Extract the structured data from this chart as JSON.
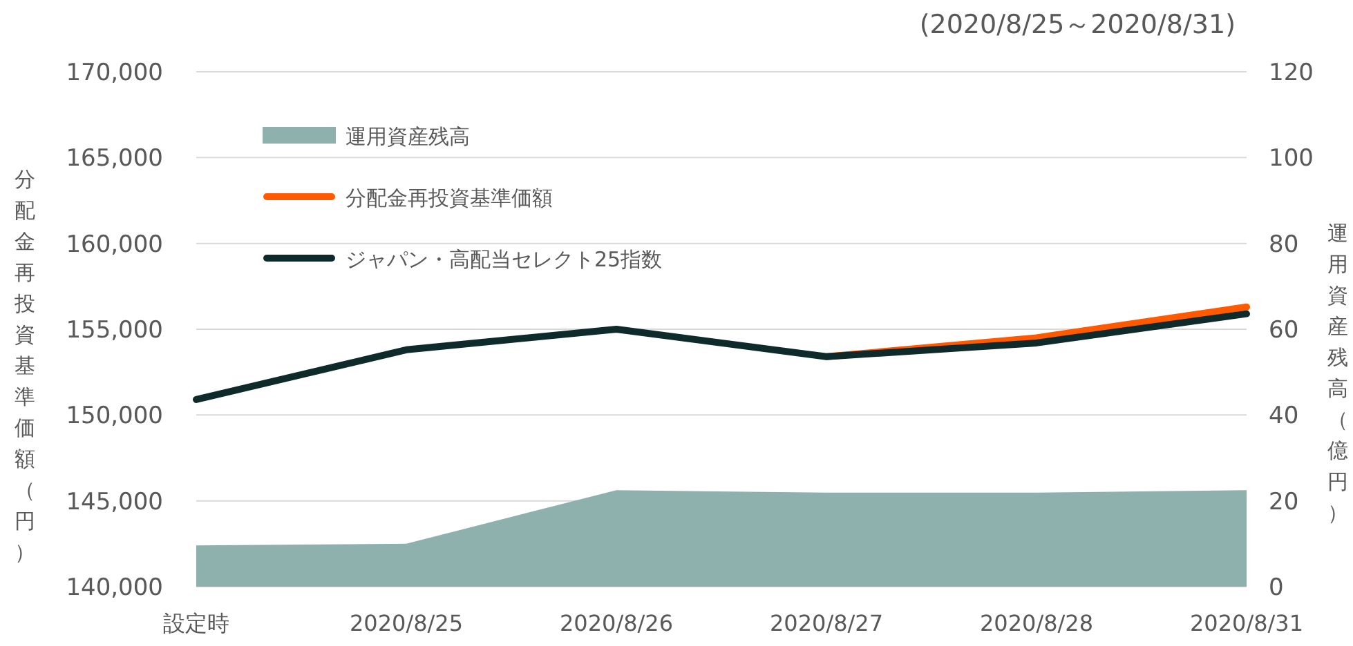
{
  "chart_data": {
    "type": "line",
    "subtitle": "(2020/8/25～2020/8/31)",
    "ylabel": "分配金再投資基準価額（円）",
    "y2label": "運用資産残高（億円）",
    "categories": [
      "設定時",
      "2020/8/25",
      "2020/8/26",
      "2020/8/27",
      "2020/8/28",
      "2020/8/31"
    ],
    "series": [
      {
        "name": "運用資産残高",
        "type": "area",
        "axis": "y2",
        "color": "#8fb1ae",
        "values": [
          9.6,
          10,
          22.5,
          21.9,
          21.9,
          22.5
        ]
      },
      {
        "name": "分配金再投資基準価額",
        "color": "#ff5a00",
        "values": [
          null,
          null,
          null,
          153400,
          154500,
          156300
        ]
      },
      {
        "name": "ジャパン・高配当セレクト25指数",
        "color": "#0f2a2a",
        "values": [
          150900,
          153800,
          155000,
          153400,
          154200,
          155900
        ]
      }
    ],
    "ylim": [
      140000,
      170000
    ],
    "yticks": [
      {
        "value": 140000,
        "label": "140,000"
      },
      {
        "value": 145000,
        "label": "145,000"
      },
      {
        "value": 150000,
        "label": "150,000"
      },
      {
        "value": 155000,
        "label": "155,000"
      },
      {
        "value": 160000,
        "label": "160,000"
      },
      {
        "value": 165000,
        "label": "165,000"
      },
      {
        "value": 170000,
        "label": "170,000"
      }
    ],
    "y2lim": [
      0,
      120
    ],
    "y2ticks": [
      0,
      20,
      40,
      60,
      80,
      100,
      120
    ],
    "grid": "y",
    "legend": "top left",
    "marker": "none",
    "line_style": "solid"
  }
}
